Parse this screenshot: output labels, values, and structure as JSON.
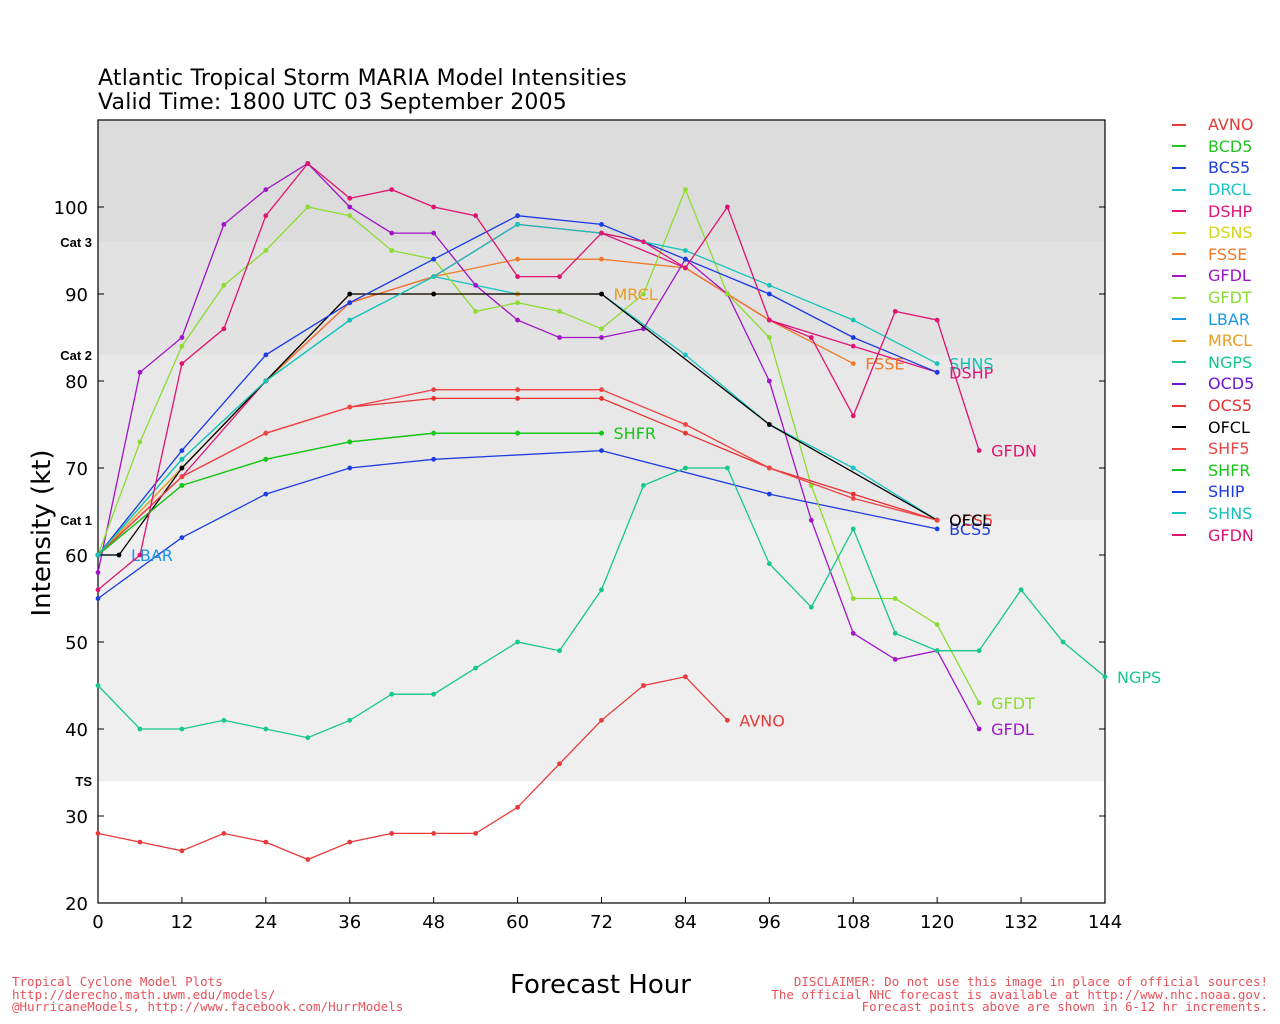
{
  "title_line1": "Atlantic Tropical Storm MARIA Model Intensities",
  "title_line2": "Valid Time: 1800 UTC 03 September 2005",
  "footer": {
    "left": [
      "Tropical Cyclone Model Plots",
      "http://derecho.math.uwm.edu/models/",
      "@HurricaneModels, http://www.facebook.com/HurrModels"
    ],
    "right": [
      "DISCLAIMER: Do not use this image in place of official sources!",
      "The official NHC forecast is available at http://www.nhc.noaa.gov.",
      "Forecast points above are shown in 6-12 hr increments."
    ]
  },
  "chart_data": {
    "type": "line",
    "xlabel": "Forecast Hour",
    "ylabel": "Intensity (kt)",
    "xlim": [
      0,
      144
    ],
    "ylim": [
      20,
      110
    ],
    "xticks": [
      0,
      12,
      24,
      36,
      48,
      60,
      72,
      84,
      96,
      108,
      120,
      132,
      144
    ],
    "yticks": [
      20,
      30,
      40,
      50,
      60,
      70,
      80,
      90,
      100
    ],
    "bands": [
      {
        "label": "TS",
        "from": 34,
        "to": 64,
        "color": "#efefef"
      },
      {
        "label": "Cat 1",
        "from": 64,
        "to": 83,
        "color": "#e8e8e8"
      },
      {
        "label": "Cat 2",
        "from": 83,
        "to": 96,
        "color": "#e2e2e2"
      },
      {
        "label": "Cat 3",
        "from": 96,
        "to": 110,
        "color": "#dcdcdc"
      }
    ],
    "series": [
      {
        "name": "AVNO",
        "color": "#e83a3a",
        "label_at_end": true,
        "points": [
          [
            0,
            28
          ],
          [
            6,
            27
          ],
          [
            12,
            26
          ],
          [
            18,
            28
          ],
          [
            24,
            27
          ],
          [
            30,
            25
          ],
          [
            36,
            27
          ],
          [
            42,
            28
          ],
          [
            48,
            28
          ],
          [
            54,
            28
          ],
          [
            60,
            31
          ],
          [
            66,
            36
          ],
          [
            72,
            41
          ],
          [
            78,
            45
          ],
          [
            84,
            46
          ],
          [
            90,
            41
          ]
        ]
      },
      {
        "name": "BCD5",
        "color": "#22c422",
        "label_at_end": false,
        "points": [
          [
            0,
            60
          ],
          [
            12,
            68
          ],
          [
            24,
            71
          ],
          [
            36,
            73
          ],
          [
            48,
            74
          ],
          [
            60,
            74
          ],
          [
            72,
            74
          ]
        ]
      },
      {
        "name": "BCS5",
        "color": "#1e3ee0",
        "label_at_end": true,
        "points": [
          [
            0,
            55
          ],
          [
            12,
            62
          ],
          [
            24,
            67
          ],
          [
            36,
            70
          ],
          [
            48,
            71
          ],
          [
            72,
            72
          ],
          [
            96,
            67
          ],
          [
            120,
            63
          ]
        ]
      },
      {
        "name": "DRCL",
        "color": "#1cc4c4",
        "label_at_end": false,
        "points": [
          [
            0,
            60
          ],
          [
            12,
            71
          ],
          [
            24,
            80
          ],
          [
            36,
            87
          ],
          [
            48,
            92
          ],
          [
            60,
            90
          ],
          [
            72,
            90
          ],
          [
            84,
            83
          ],
          [
            96,
            75
          ],
          [
            108,
            70
          ],
          [
            120,
            64
          ]
        ]
      },
      {
        "name": "DSHP",
        "color": "#e0157a",
        "label_at_end": true,
        "points": [
          [
            0,
            60
          ],
          [
            12,
            69
          ],
          [
            24,
            80
          ],
          [
            36,
            89
          ],
          [
            48,
            92
          ],
          [
            60,
            98
          ],
          [
            72,
            97
          ],
          [
            84,
            93
          ],
          [
            96,
            87
          ],
          [
            108,
            84
          ],
          [
            120,
            81
          ]
        ]
      },
      {
        "name": "DSNS",
        "color": "#d4d41a",
        "label_at_end": false,
        "points": []
      },
      {
        "name": "FSSE",
        "color": "#ee7a2a",
        "label_at_end": true,
        "points": [
          [
            0,
            60
          ],
          [
            12,
            70
          ],
          [
            24,
            80
          ],
          [
            36,
            89
          ],
          [
            48,
            92
          ],
          [
            60,
            94
          ],
          [
            72,
            94
          ],
          [
            84,
            93
          ],
          [
            96,
            87
          ],
          [
            108,
            82
          ]
        ]
      },
      {
        "name": "GFDL",
        "color": "#a014c8",
        "label_at_end": true,
        "points": [
          [
            0,
            58
          ],
          [
            6,
            81
          ],
          [
            12,
            85
          ],
          [
            18,
            98
          ],
          [
            24,
            102
          ],
          [
            30,
            105
          ],
          [
            36,
            100
          ],
          [
            42,
            97
          ],
          [
            48,
            97
          ],
          [
            54,
            91
          ],
          [
            60,
            87
          ],
          [
            66,
            85
          ],
          [
            72,
            85
          ],
          [
            78,
            86
          ],
          [
            84,
            94
          ],
          [
            90,
            90
          ],
          [
            96,
            80
          ],
          [
            102,
            64
          ],
          [
            108,
            51
          ],
          [
            114,
            48
          ],
          [
            120,
            49
          ],
          [
            126,
            40
          ]
        ]
      },
      {
        "name": "GFDT",
        "color": "#8cdc32",
        "label_at_end": true,
        "points": [
          [
            0,
            60
          ],
          [
            6,
            73
          ],
          [
            12,
            84
          ],
          [
            18,
            91
          ],
          [
            24,
            95
          ],
          [
            30,
            100
          ],
          [
            36,
            99
          ],
          [
            42,
            95
          ],
          [
            48,
            94
          ],
          [
            54,
            88
          ],
          [
            60,
            89
          ],
          [
            66,
            88
          ],
          [
            72,
            86
          ],
          [
            78,
            90
          ],
          [
            84,
            102
          ],
          [
            90,
            90
          ],
          [
            96,
            85
          ],
          [
            102,
            68
          ],
          [
            108,
            55
          ],
          [
            114,
            55
          ],
          [
            120,
            52
          ],
          [
            126,
            43
          ]
        ]
      },
      {
        "name": "LBAR",
        "color": "#1a96e6",
        "label_at_end": true,
        "points": [
          [
            0,
            60
          ],
          [
            3,
            60
          ]
        ]
      },
      {
        "name": "MRCL",
        "color": "#e8a020",
        "label_at_end": true,
        "points": [
          [
            0,
            60
          ],
          [
            12,
            70
          ],
          [
            24,
            80
          ],
          [
            36,
            90
          ],
          [
            48,
            90
          ],
          [
            60,
            90
          ],
          [
            72,
            90
          ]
        ]
      },
      {
        "name": "NGPS",
        "color": "#16c88c",
        "label_at_end": true,
        "points": [
          [
            0,
            45
          ],
          [
            6,
            40
          ],
          [
            12,
            40
          ],
          [
            18,
            41
          ],
          [
            24,
            40
          ],
          [
            30,
            39
          ],
          [
            36,
            41
          ],
          [
            42,
            44
          ],
          [
            48,
            44
          ],
          [
            54,
            47
          ],
          [
            60,
            50
          ],
          [
            66,
            49
          ],
          [
            72,
            56
          ],
          [
            78,
            68
          ],
          [
            84,
            70
          ],
          [
            90,
            70
          ],
          [
            96,
            59
          ],
          [
            102,
            54
          ],
          [
            108,
            63
          ],
          [
            114,
            51
          ],
          [
            120,
            49
          ],
          [
            126,
            49
          ],
          [
            132,
            56
          ],
          [
            138,
            50
          ],
          [
            144,
            46
          ]
        ]
      },
      {
        "name": "OCD5",
        "color": "#6a14d4",
        "label_at_end": false,
        "points": []
      },
      {
        "name": "OCS5",
        "color": "#e83232",
        "label_at_end": true,
        "points": [
          [
            0,
            60
          ],
          [
            12,
            69
          ],
          [
            24,
            74
          ],
          [
            36,
            77
          ],
          [
            48,
            78
          ],
          [
            60,
            78
          ],
          [
            72,
            78
          ],
          [
            84,
            74
          ],
          [
            96,
            70
          ],
          [
            108,
            67
          ],
          [
            120,
            64
          ]
        ]
      },
      {
        "name": "OFCL",
        "color": "#000000",
        "label_at_end": true,
        "points": [
          [
            0,
            60
          ],
          [
            3,
            60
          ],
          [
            12,
            70
          ],
          [
            24,
            80
          ],
          [
            36,
            90
          ],
          [
            48,
            90
          ],
          [
            72,
            90
          ],
          [
            96,
            75
          ],
          [
            120,
            64
          ]
        ]
      },
      {
        "name": "SHF5",
        "color": "#ee4444",
        "label_at_end": false,
        "points": [
          [
            0,
            60
          ],
          [
            12,
            69
          ],
          [
            24,
            74
          ],
          [
            36,
            77
          ],
          [
            48,
            79
          ],
          [
            60,
            79
          ],
          [
            72,
            79
          ],
          [
            84,
            75
          ],
          [
            96,
            70
          ],
          [
            108,
            66.5
          ],
          [
            120,
            64
          ]
        ]
      },
      {
        "name": "SHFR",
        "color": "#16c616",
        "label_at_end": true,
        "points": [
          [
            0,
            60
          ],
          [
            12,
            68
          ],
          [
            24,
            71
          ],
          [
            36,
            73
          ],
          [
            48,
            74
          ],
          [
            60,
            74
          ],
          [
            72,
            74
          ]
        ]
      },
      {
        "name": "SHIP",
        "color": "#1a3ae6",
        "label_at_end": false,
        "points": [
          [
            0,
            60
          ],
          [
            12,
            72
          ],
          [
            24,
            83
          ],
          [
            36,
            89
          ],
          [
            48,
            94
          ],
          [
            60,
            99
          ],
          [
            72,
            98
          ],
          [
            84,
            94
          ],
          [
            96,
            90
          ],
          [
            108,
            85
          ],
          [
            120,
            81
          ]
        ]
      },
      {
        "name": "SHNS",
        "color": "#14c4b8",
        "label_at_end": true,
        "points": [
          [
            0,
            60
          ],
          [
            12,
            71
          ],
          [
            24,
            80
          ],
          [
            36,
            87
          ],
          [
            48,
            92
          ],
          [
            60,
            98
          ],
          [
            72,
            97
          ],
          [
            84,
            95
          ],
          [
            96,
            91
          ],
          [
            108,
            87
          ],
          [
            120,
            82
          ]
        ]
      },
      {
        "name": "GFDN",
        "color": "#e01470",
        "label_at_end": true,
        "points": [
          [
            0,
            56
          ],
          [
            6,
            60
          ],
          [
            12,
            82
          ],
          [
            18,
            86
          ],
          [
            24,
            99
          ],
          [
            30,
            105
          ],
          [
            36,
            101
          ],
          [
            42,
            102
          ],
          [
            48,
            100
          ],
          [
            54,
            99
          ],
          [
            60,
            92
          ],
          [
            66,
            92
          ],
          [
            72,
            97
          ],
          [
            78,
            96
          ],
          [
            84,
            93
          ],
          [
            90,
            100
          ],
          [
            96,
            87
          ],
          [
            102,
            85
          ],
          [
            108,
            76
          ],
          [
            114,
            88
          ],
          [
            120,
            87
          ],
          [
            126,
            72
          ]
        ]
      }
    ]
  }
}
